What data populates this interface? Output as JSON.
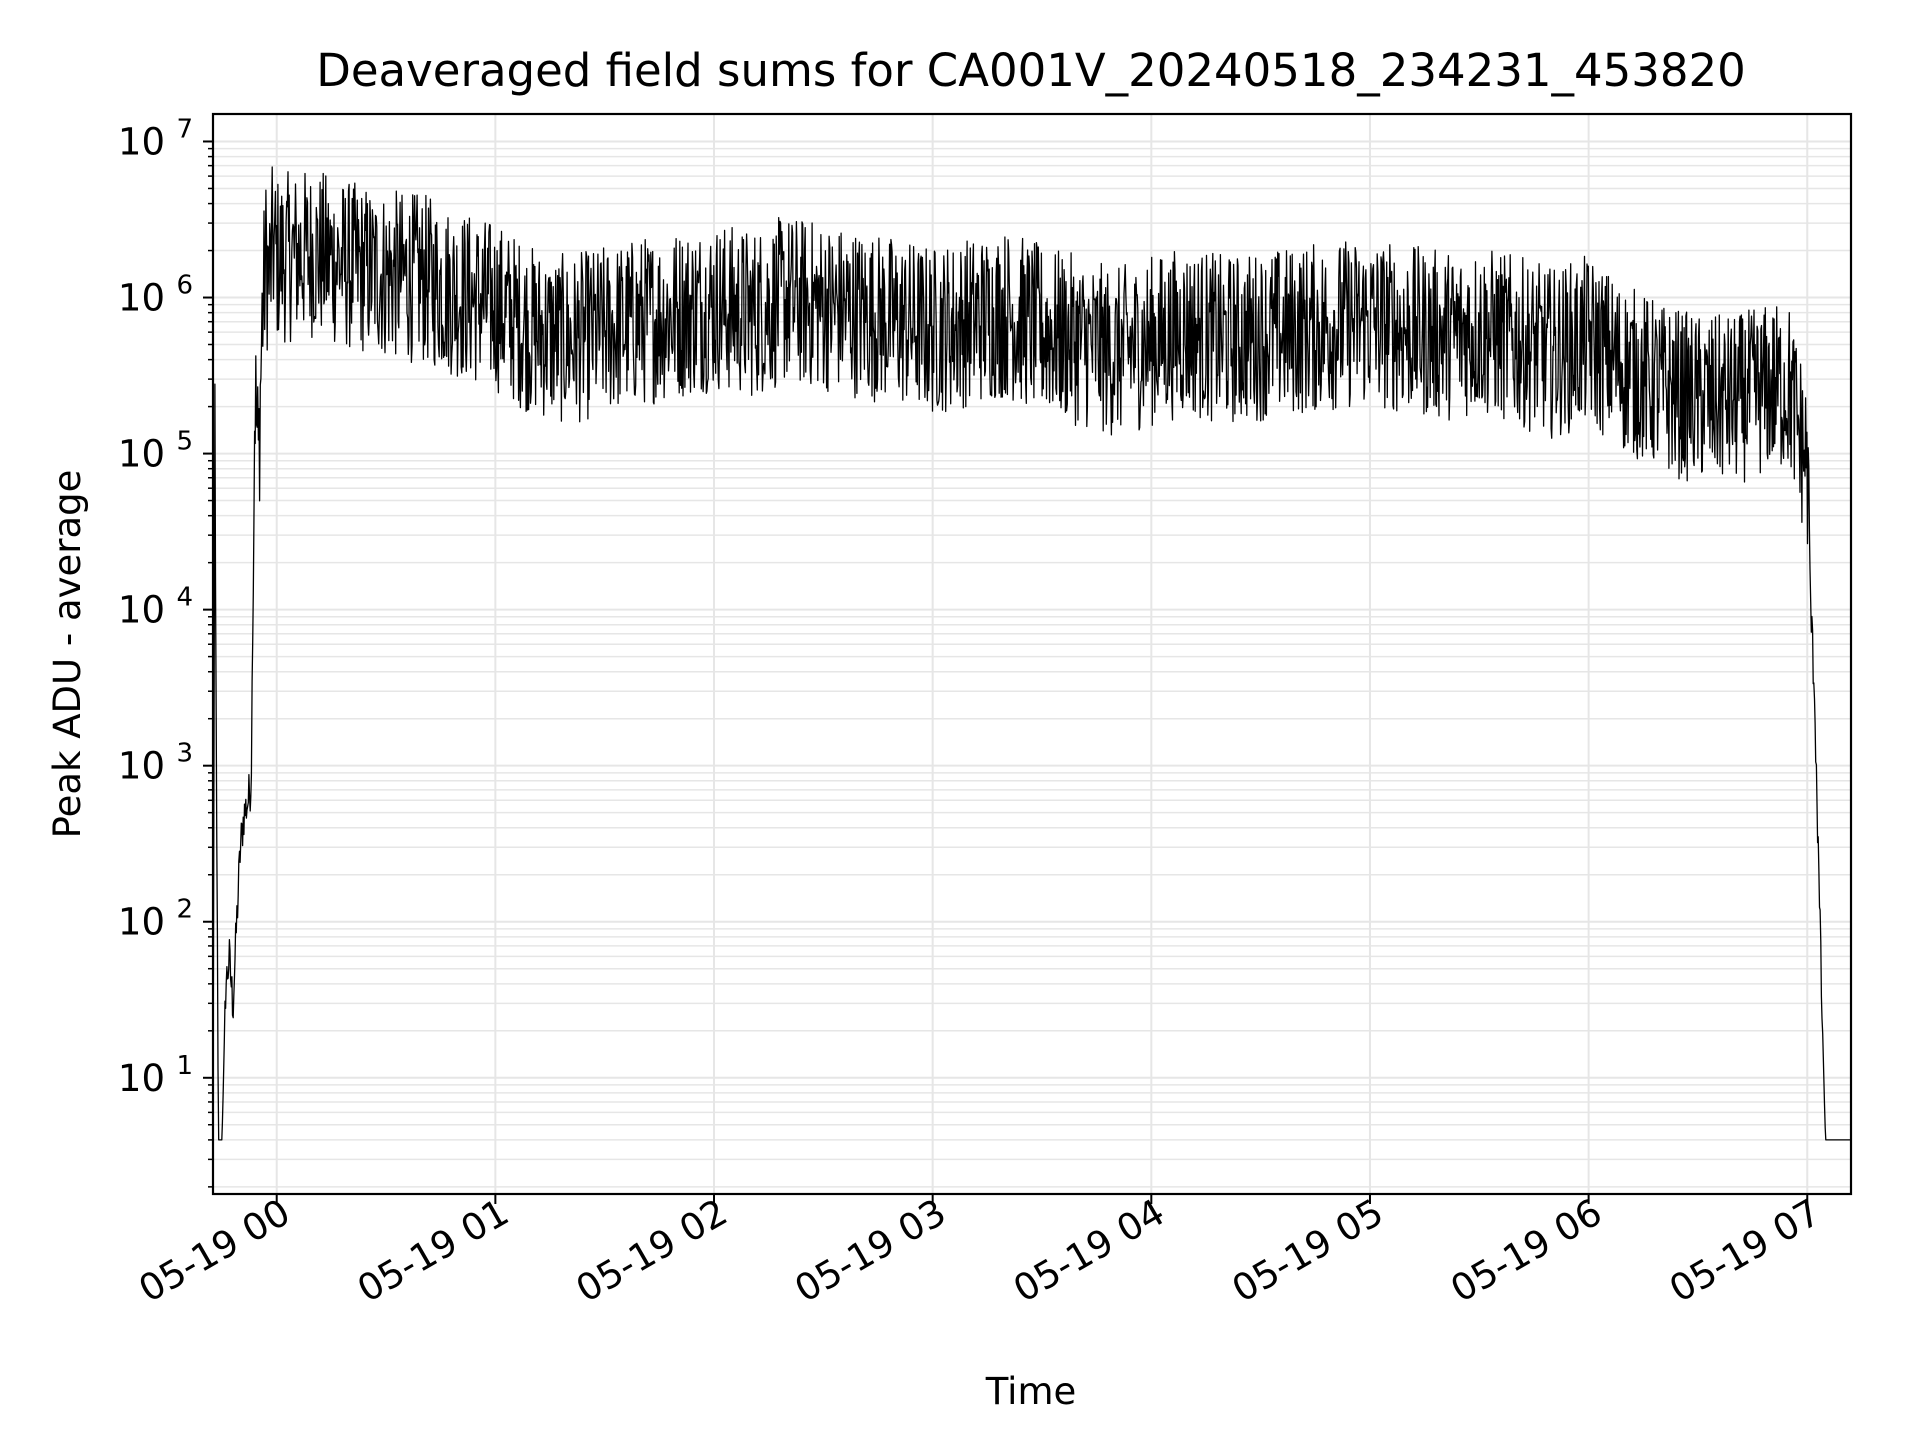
{
  "chart_data": {
    "type": "line",
    "title": "Deaveraged field sums for CA001V_20240518_234231_453820",
    "xlabel": "Time",
    "ylabel": "Peak ADU - average",
    "y_scale": "log",
    "ylim": [
      1.8,
      15000000
    ],
    "xlim": [
      "2024-05-18 23:42:31",
      "2024-05-19 07:12:00"
    ],
    "grid": true,
    "grid_minor_y": true,
    "line_color": "#000000",
    "grid_color": "#e6e6e6",
    "x_ticks": [
      {
        "label": "05-19 00",
        "time": "2024-05-19 00:00"
      },
      {
        "label": "05-19 01",
        "time": "2024-05-19 01:00"
      },
      {
        "label": "05-19 02",
        "time": "2024-05-19 02:00"
      },
      {
        "label": "05-19 03",
        "time": "2024-05-19 03:00"
      },
      {
        "label": "05-19 04",
        "time": "2024-05-19 04:00"
      },
      {
        "label": "05-19 05",
        "time": "2024-05-19 05:00"
      },
      {
        "label": "05-19 06",
        "time": "2024-05-19 06:00"
      },
      {
        "label": "05-19 07",
        "time": "2024-05-19 07:00"
      }
    ],
    "y_ticks": [
      {
        "base": "10",
        "exp": "1",
        "value": 10
      },
      {
        "base": "10",
        "exp": "2",
        "value": 100
      },
      {
        "base": "10",
        "exp": "3",
        "value": 1000
      },
      {
        "base": "10",
        "exp": "4",
        "value": 10000
      },
      {
        "base": "10",
        "exp": "5",
        "value": 100000
      },
      {
        "base": "10",
        "exp": "6",
        "value": 1000000
      },
      {
        "base": "10",
        "exp": "7",
        "value": 10000000
      }
    ],
    "series": [
      {
        "x": [
          "2024-05-18 23:42:31",
          "2024-05-18 23:43:00",
          "2024-05-18 23:44:00",
          "2024-05-18 23:45:00",
          "2024-05-18 23:46:00",
          "2024-05-18 23:47:00",
          "2024-05-18 23:48:00",
          "2024-05-18 23:49:00",
          "2024-05-18 23:50:00",
          "2024-05-18 23:51:00",
          "2024-05-18 23:52:00",
          "2024-05-18 23:53:00",
          "2024-05-18 23:54:00",
          "2024-05-18 23:55:00",
          "2024-05-18 23:56:00",
          "2024-05-18 23:57:00",
          "2024-05-18 23:58:00",
          "2024-05-18 23:59:00",
          "2024-05-19 00:00:00",
          "2024-05-19 00:10:00",
          "2024-05-19 00:20:00",
          "2024-05-19 00:30:00",
          "2024-05-19 00:40:00",
          "2024-05-19 00:50:00",
          "2024-05-19 01:00:00",
          "2024-05-19 01:10:00",
          "2024-05-19 01:20:00",
          "2024-05-19 01:30:00",
          "2024-05-19 01:40:00",
          "2024-05-19 01:50:00",
          "2024-05-19 02:00:00",
          "2024-05-19 02:10:00",
          "2024-05-19 02:20:00",
          "2024-05-19 02:30:00",
          "2024-05-19 02:40:00",
          "2024-05-19 02:50:00",
          "2024-05-19 03:00:00",
          "2024-05-19 03:10:00",
          "2024-05-19 03:20:00",
          "2024-05-19 03:30:00",
          "2024-05-19 03:40:00",
          "2024-05-19 03:50:00",
          "2024-05-19 04:00:00",
          "2024-05-19 04:10:00",
          "2024-05-19 04:20:00",
          "2024-05-19 04:30:00",
          "2024-05-19 04:40:00",
          "2024-05-19 04:50:00",
          "2024-05-19 05:00:00",
          "2024-05-19 05:10:00",
          "2024-05-19 05:20:00",
          "2024-05-19 05:30:00",
          "2024-05-19 05:40:00",
          "2024-05-19 05:50:00",
          "2024-05-19 06:00:00",
          "2024-05-19 06:10:00",
          "2024-05-19 06:20:00",
          "2024-05-19 06:30:00",
          "2024-05-19 06:40:00",
          "2024-05-19 06:50:00",
          "2024-05-19 06:55:00",
          "2024-05-19 06:58:00",
          "2024-05-19 07:00:00",
          "2024-05-19 07:01:00",
          "2024-05-19 07:02:00",
          "2024-05-19 07:03:00",
          "2024-05-19 07:04:00",
          "2024-05-19 07:05:00",
          "2024-05-19 07:06:00",
          "2024-05-19 07:08:00",
          "2024-05-19 07:12:00"
        ],
        "y": [
          4,
          130000,
          4,
          4,
          40,
          60,
          30,
          100,
          300,
          500,
          600,
          800,
          300000,
          100000,
          800000,
          2000000,
          1500000,
          2500000,
          2000000,
          2200000,
          1800000,
          1600000,
          1500000,
          1200000,
          1000000,
          700000,
          600000,
          700000,
          800000,
          900000,
          1000000,
          900000,
          1100000,
          1000000,
          900000,
          800000,
          700000,
          800000,
          900000,
          700000,
          600000,
          500000,
          600000,
          700000,
          600000,
          650000,
          700000,
          750000,
          800000,
          700000,
          650000,
          700000,
          600000,
          500000,
          600000,
          400000,
          300000,
          250000,
          250000,
          300000,
          300000,
          150000,
          100000,
          10000,
          3000,
          300,
          30,
          4,
          4,
          4,
          4
        ]
      }
    ]
  }
}
